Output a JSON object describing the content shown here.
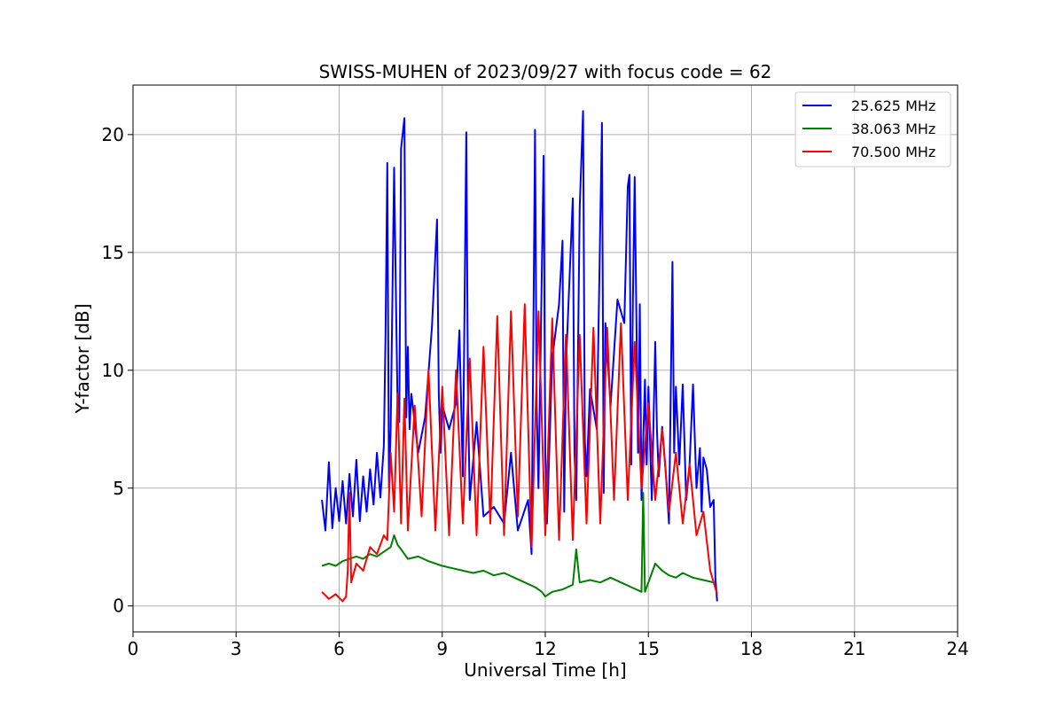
{
  "chart_data": {
    "type": "line",
    "title": "SWISS-MUHEN of 2023/09/27 with focus code = 62",
    "xlabel": "Universal Time [h]",
    "ylabel": "Y-factor [dB]",
    "xlim": [
      0,
      24
    ],
    "ylim": [
      -1.1,
      22.1
    ],
    "xticks": [
      0,
      3,
      6,
      9,
      12,
      15,
      18,
      21,
      24
    ],
    "yticks": [
      0,
      5,
      10,
      15,
      20
    ],
    "grid": true,
    "legend_position": "top-right",
    "series": [
      {
        "name": "25.625 MHz",
        "color": "#0000ff",
        "x": [
          5.5,
          5.6,
          5.7,
          5.8,
          5.9,
          6.0,
          6.1,
          6.2,
          6.3,
          6.4,
          6.5,
          6.6,
          6.7,
          6.8,
          6.9,
          7.0,
          7.1,
          7.2,
          7.3,
          7.35,
          7.4,
          7.45,
          7.5,
          7.6,
          7.65,
          7.7,
          7.75,
          7.8,
          7.9,
          7.95,
          8.0,
          8.05,
          8.1,
          8.3,
          8.5,
          8.7,
          8.85,
          8.9,
          8.95,
          9.0,
          9.2,
          9.4,
          9.5,
          9.6,
          9.7,
          9.75,
          9.8,
          10.0,
          10.2,
          10.5,
          10.8,
          11.0,
          11.2,
          11.5,
          11.6,
          11.7,
          11.75,
          11.8,
          11.95,
          12.0,
          12.05,
          12.2,
          12.4,
          12.5,
          12.55,
          12.6,
          12.8,
          12.85,
          12.9,
          13.0,
          13.1,
          13.15,
          13.2,
          13.3,
          13.5,
          13.65,
          13.7,
          13.75,
          13.9,
          14.1,
          14.3,
          14.4,
          14.45,
          14.5,
          14.55,
          14.6,
          14.7,
          14.75,
          14.8,
          14.9,
          14.95,
          15.0,
          15.1,
          15.2,
          15.25,
          15.3,
          15.4,
          15.5,
          15.6,
          15.7,
          15.75,
          15.8,
          15.9,
          16.0,
          16.1,
          16.2,
          16.3,
          16.4,
          16.5,
          16.55,
          16.6,
          16.7,
          16.8,
          16.9,
          16.95,
          17.0
        ],
        "values": [
          4.5,
          3.2,
          6.1,
          3.3,
          5.0,
          3.6,
          5.3,
          3.5,
          5.6,
          3.8,
          6.2,
          3.6,
          5.5,
          4.0,
          5.8,
          4.3,
          6.5,
          4.6,
          6.8,
          11.5,
          18.8,
          5.0,
          7.5,
          18.6,
          13.5,
          8.5,
          7.8,
          19.4,
          20.7,
          8.0,
          11.0,
          7.5,
          9.0,
          6.5,
          8.0,
          11.8,
          16.4,
          9.0,
          6.5,
          8.5,
          7.5,
          8.6,
          11.7,
          5.5,
          20.1,
          9.0,
          4.5,
          7.8,
          3.8,
          4.2,
          3.5,
          6.5,
          3.2,
          4.5,
          2.2,
          20.2,
          8.5,
          5.0,
          19.1,
          6.5,
          3.5,
          10.5,
          12.8,
          15.5,
          4.0,
          10.2,
          17.3,
          6.5,
          4.5,
          16.9,
          21.0,
          7.0,
          5.5,
          9.2,
          7.5,
          20.5,
          4.8,
          12.0,
          8.5,
          13.0,
          12.0,
          17.8,
          18.3,
          6.0,
          13.0,
          18.2,
          6.5,
          12.8,
          4.5,
          9.6,
          6.0,
          9.3,
          4.5,
          11.2,
          7.5,
          5.5,
          7.6,
          5.8,
          3.5,
          14.6,
          6.5,
          9.3,
          6.0,
          9.4,
          4.5,
          6.0,
          9.4,
          5.0,
          6.7,
          4.0,
          6.3,
          5.8,
          4.2,
          4.5,
          1.2,
          0.2
        ]
      },
      {
        "name": "38.063 MHz",
        "color": "#008000",
        "x": [
          5.5,
          5.7,
          5.9,
          6.1,
          6.3,
          6.5,
          6.7,
          6.9,
          7.1,
          7.3,
          7.5,
          7.6,
          7.7,
          7.8,
          8.0,
          8.3,
          8.6,
          9.0,
          9.3,
          9.6,
          9.9,
          10.2,
          10.5,
          10.8,
          11.1,
          11.4,
          11.7,
          11.9,
          12.0,
          12.2,
          12.5,
          12.8,
          12.9,
          13.0,
          13.3,
          13.6,
          13.9,
          14.2,
          14.5,
          14.8,
          14.85,
          14.9,
          15.0,
          15.2,
          15.4,
          15.6,
          15.8,
          16.0,
          16.3,
          16.6,
          16.9
        ],
        "values": [
          1.7,
          1.8,
          1.7,
          1.9,
          2.0,
          2.1,
          2.0,
          2.2,
          2.1,
          2.3,
          2.5,
          3.0,
          2.6,
          2.4,
          2.0,
          2.1,
          1.9,
          1.7,
          1.6,
          1.5,
          1.4,
          1.5,
          1.3,
          1.4,
          1.2,
          1.0,
          0.8,
          0.6,
          0.4,
          0.6,
          0.7,
          0.9,
          2.4,
          1.0,
          1.1,
          1.0,
          1.2,
          1.0,
          0.8,
          0.6,
          4.8,
          0.6,
          1.0,
          1.8,
          1.5,
          1.3,
          1.2,
          1.4,
          1.2,
          1.1,
          1.0
        ]
      },
      {
        "name": "70.500 MHz",
        "color": "#ff0000",
        "x": [
          5.5,
          5.7,
          5.9,
          6.1,
          6.2,
          6.25,
          6.3,
          6.35,
          6.5,
          6.7,
          6.9,
          7.1,
          7.3,
          7.4,
          7.5,
          7.6,
          7.7,
          7.8,
          7.9,
          8.0,
          8.2,
          8.4,
          8.6,
          8.8,
          9.0,
          9.2,
          9.4,
          9.6,
          9.8,
          10.0,
          10.2,
          10.4,
          10.6,
          10.8,
          11.0,
          11.2,
          11.4,
          11.6,
          11.8,
          12.0,
          12.2,
          12.4,
          12.6,
          12.8,
          13.0,
          13.2,
          13.4,
          13.6,
          13.8,
          14.0,
          14.2,
          14.4,
          14.6,
          14.8,
          15.0,
          15.2,
          15.4,
          15.6,
          15.8,
          16.0,
          16.2,
          16.4,
          16.6,
          16.8,
          16.9,
          17.0
        ],
        "values": [
          0.6,
          0.3,
          0.5,
          0.2,
          0.4,
          1.5,
          4.8,
          1.0,
          1.8,
          1.5,
          2.5,
          2.2,
          3.0,
          2.8,
          6.5,
          4.0,
          9.0,
          3.5,
          8.8,
          3.2,
          8.5,
          3.8,
          10.0,
          3.2,
          9.3,
          3.0,
          10.0,
          3.5,
          10.5,
          3.0,
          11.0,
          3.5,
          12.3,
          3.0,
          12.5,
          3.8,
          12.8,
          2.5,
          12.5,
          3.0,
          12.2,
          2.8,
          11.5,
          2.8,
          11.5,
          3.5,
          11.8,
          3.5,
          11.8,
          4.5,
          12.0,
          4.5,
          11.2,
          5.0,
          8.6,
          4.5,
          7.5,
          4.0,
          6.5,
          3.5,
          6.0,
          3.0,
          4.0,
          1.5,
          1.0,
          0.5
        ]
      }
    ]
  }
}
